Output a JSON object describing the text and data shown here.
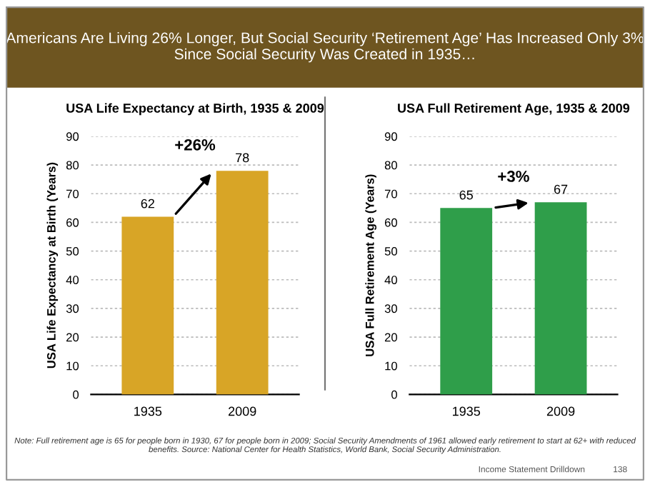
{
  "chart_data": [
    {
      "type": "other",
      "title": "Americans Are Living 26% Longer, But Social Security ‘Retirement Age’ Has Increased Only 3% Since Social Security Was Created in 1935…",
      "annotations": [
        "Note: Full retirement age is 65 for people born in 1930, 67 for people born in 2009; Social Security Amendments of 1961 allowed early retirement to start at 62+ with reduced benefits. Source: National Center for Health Statistics, World Bank, Social Security Administration.",
        "Income Statement Drilldown",
        "138"
      ]
    },
    {
      "type": "bar",
      "title": "USA Life Expectancy at Birth, 1935 & 2009",
      "ylabel": "USA Life Expectancy at Birth (Years)",
      "categories": [
        "1935",
        "2009"
      ],
      "values": [
        62,
        78
      ],
      "color": "#d8a526",
      "data_labels": true,
      "ylim": [
        0,
        90
      ],
      "yticks": [
        0,
        10,
        20,
        30,
        40,
        50,
        60,
        70,
        80,
        90
      ],
      "grid": "y",
      "annotations": [
        {
          "text": "+26%",
          "x": "2009",
          "y": 78
        }
      ]
    },
    {
      "type": "bar",
      "title": "USA Full Retirement Age, 1935 & 2009",
      "ylabel": "USA Full Retirement Age (Years)",
      "categories": [
        "1935",
        "2009"
      ],
      "values": [
        65,
        67
      ],
      "color": "#2f9e4a",
      "data_labels": true,
      "ylim": [
        0,
        90
      ],
      "yticks": [
        0,
        10,
        20,
        30,
        40,
        50,
        60,
        70,
        80,
        90
      ],
      "grid": "y",
      "annotations": [
        {
          "text": "+3%",
          "x": "2009",
          "y": 67
        }
      ]
    }
  ]
}
